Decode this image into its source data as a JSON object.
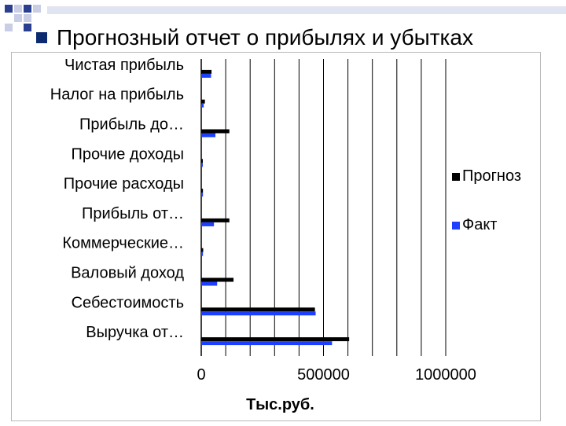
{
  "slide": {
    "title": "Прогнозный отчет о прибылях и убытках"
  },
  "colors": {
    "forecast": "#000000",
    "actual": "#1f3fff",
    "grid": "#000000",
    "bullet": "#0b2a6f",
    "deco_light": "#c9cde6",
    "deco_dark": "#2a3f8f"
  },
  "chart_data": {
    "type": "bar",
    "orientation": "horizontal",
    "title": "",
    "xlabel": "Тыс.руб.",
    "ylabel": "",
    "xlim": [
      0,
      1000000
    ],
    "xticks": [
      "0",
      "500000",
      "1000000"
    ],
    "grid": true,
    "legend_position": "right",
    "categories": [
      "Чистая прибыль",
      "Налог на прибыль",
      "Прибыль до…",
      "Прочие доходы",
      "Прочие расходы",
      "Прибыль от…",
      "Коммерческие…",
      "Валовый доход",
      "Себестоимость",
      "Выручка от…"
    ],
    "series": [
      {
        "name": "Прогноз",
        "values": [
          42000,
          15000,
          115000,
          5000,
          7000,
          115000,
          8000,
          132000,
          465000,
          605000
        ]
      },
      {
        "name": "Факт",
        "values": [
          40000,
          10000,
          58000,
          6000,
          7000,
          52000,
          7000,
          65000,
          468000,
          535000
        ]
      }
    ]
  }
}
